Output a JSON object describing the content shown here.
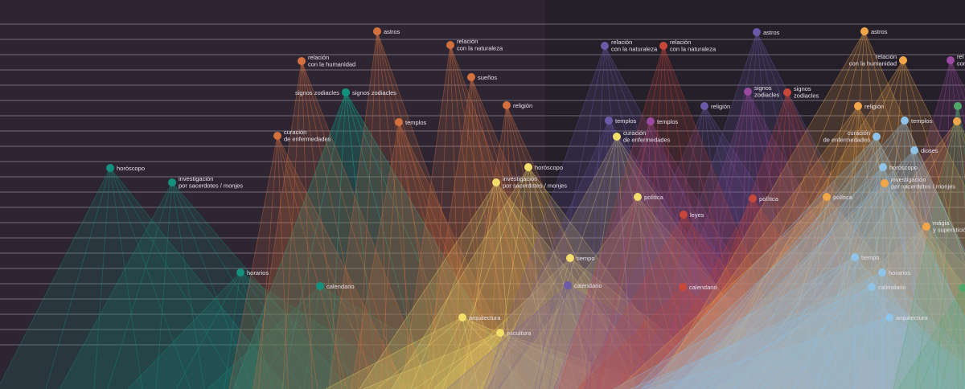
{
  "palette": {
    "background": "#2e2533",
    "background_right": "#251f2a",
    "guide_line": "#d9d4dc",
    "label": "#e6e1ea",
    "teal": "#14917d",
    "orange": "#d5703f",
    "violet": "#6b5aa8",
    "purple": "#9a4aa0",
    "red": "#c8463a",
    "yellow": "#f3dd6b",
    "gold": "#f2a64a",
    "lightblue": "#8fc3e8",
    "green": "#4fa869"
  },
  "groups": [
    {
      "id": "teal",
      "color": "#14917d",
      "nodes": [
        {
          "label": "signos zodiacles",
          "align": "left"
        },
        {
          "label": "signos zodiacles",
          "align": "right"
        },
        {
          "label": "horóscopo",
          "align": "right"
        },
        {
          "label": "investigación\npor sacerdotes / monjes",
          "align": "right"
        },
        {
          "label": "horarios",
          "align": "right"
        },
        {
          "label": "calendario",
          "align": "right"
        }
      ]
    },
    {
      "id": "orange",
      "color": "#d5703f",
      "nodes": [
        {
          "label": "astros",
          "align": "right"
        },
        {
          "label": "relación\ncon la naturaleza",
          "align": "right"
        },
        {
          "label": "relación\ncon la humanidad",
          "align": "right"
        },
        {
          "label": "sueños",
          "align": "right"
        },
        {
          "label": "religión",
          "align": "right"
        },
        {
          "label": "templos",
          "align": "right"
        },
        {
          "label": "curación\nde enfermedades",
          "align": "right"
        }
      ]
    },
    {
      "id": "yellow",
      "color": "#f3dd6b",
      "nodes": [
        {
          "label": "curación\nde enfermedades",
          "align": "right"
        },
        {
          "label": "horóscopo",
          "align": "right"
        },
        {
          "label": "investigación\npor sacerdotes / monjes",
          "align": "right"
        },
        {
          "label": "política",
          "align": "right"
        },
        {
          "label": "tiempo",
          "align": "right"
        },
        {
          "label": "arquitectura",
          "align": "right"
        },
        {
          "label": "escultura",
          "align": "right"
        }
      ]
    },
    {
      "id": "violet",
      "color": "#6b5aa8",
      "nodes": [
        {
          "label": "relación\ncon la naturaleza",
          "align": "right"
        },
        {
          "label": "templos",
          "align": "right"
        },
        {
          "label": "astros",
          "align": "right"
        },
        {
          "label": "religión",
          "align": "right"
        },
        {
          "label": "calendario",
          "align": "right"
        }
      ]
    },
    {
      "id": "purple",
      "color": "#9a4aa0",
      "nodes": [
        {
          "label": "templos",
          "align": "right"
        },
        {
          "label": "signos\nzodiacles",
          "align": "right"
        },
        {
          "label": "rel\ncon",
          "align": "right"
        }
      ]
    },
    {
      "id": "red",
      "color": "#c8463a",
      "nodes": [
        {
          "label": "relación\ncon la naturaleza",
          "align": "right"
        },
        {
          "label": "signos\nzodiacles",
          "align": "right"
        },
        {
          "label": "política",
          "align": "right"
        },
        {
          "label": "leyes",
          "align": "right"
        },
        {
          "label": "calendario",
          "align": "right"
        }
      ]
    },
    {
      "id": "gold",
      "color": "#f2a64a",
      "nodes": [
        {
          "label": "astros",
          "align": "right"
        },
        {
          "label": "relación\ncon la humanidad",
          "align": "left"
        },
        {
          "label": "religión",
          "align": "right"
        },
        {
          "label": "investigación\npor sacerdotes / monjes",
          "align": "right"
        },
        {
          "label": "política",
          "align": "right"
        },
        {
          "label": "mágia\ny superstición",
          "align": "right"
        },
        {
          "label": "",
          "align": "right"
        }
      ]
    },
    {
      "id": "lightblue",
      "color": "#8fc3e8",
      "nodes": [
        {
          "label": "curación\nde enfermedades",
          "align": "left"
        },
        {
          "label": "templos",
          "align": "right"
        },
        {
          "label": "dioses",
          "align": "right"
        },
        {
          "label": "horóscopo",
          "align": "right"
        },
        {
          "label": "tiempo",
          "align": "right"
        },
        {
          "label": "horarios",
          "align": "right"
        },
        {
          "label": "calendario",
          "align": "right"
        },
        {
          "label": "arquitectura",
          "align": "right"
        }
      ]
    },
    {
      "id": "green",
      "color": "#4fa869",
      "nodes": [
        {
          "label": "",
          "align": "right"
        },
        {
          "label": "",
          "align": "right"
        }
      ]
    }
  ]
}
